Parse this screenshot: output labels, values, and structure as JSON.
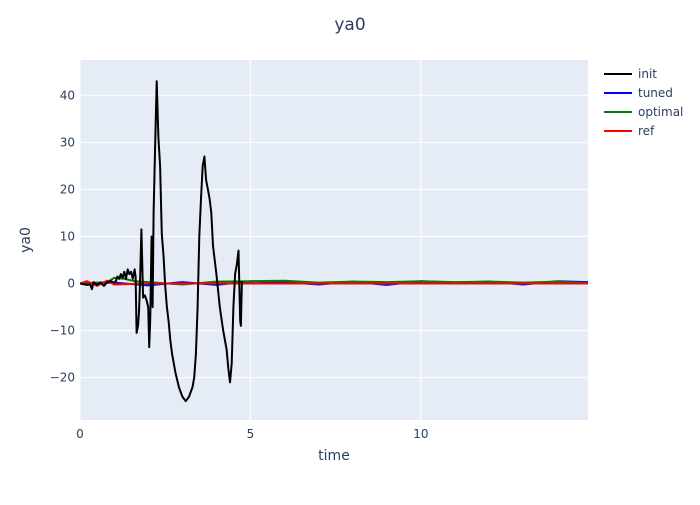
{
  "chart_data": {
    "type": "line",
    "title": "ya0",
    "xlabel": "time",
    "ylabel": "ya0",
    "xlim": [
      0,
      14.9
    ],
    "ylim": [
      -29,
      47.5
    ],
    "x_ticks": [
      0,
      5,
      10
    ],
    "y_ticks": [
      -20,
      -10,
      0,
      10,
      20,
      30,
      40
    ],
    "x_tick_labels": [
      "0",
      "5",
      "10"
    ],
    "y_tick_labels": [
      "−20",
      "−10",
      "0",
      "10",
      "20",
      "30",
      "40"
    ],
    "grid": true,
    "legend_position": "top-right",
    "colors": {
      "plot_bg": "#e5ecf6",
      "grid": "#ffffff",
      "text": "#2a3f5f"
    },
    "series": [
      {
        "name": "init",
        "color": "#000000",
        "x": [
          0,
          0.2,
          0.3,
          0.35,
          0.4,
          0.5,
          0.6,
          0.7,
          0.8,
          0.9,
          1.0,
          1.05,
          1.1,
          1.15,
          1.2,
          1.25,
          1.3,
          1.35,
          1.4,
          1.45,
          1.5,
          1.55,
          1.6,
          1.63,
          1.66,
          1.7,
          1.73,
          1.76,
          1.8,
          1.85,
          1.9,
          1.95,
          2.0,
          2.03,
          2.06,
          2.1,
          2.13,
          2.16,
          2.2,
          2.25,
          2.3,
          2.35,
          2.4,
          2.45,
          2.5,
          2.55,
          2.6,
          2.65,
          2.7,
          2.8,
          2.9,
          3.0,
          3.1,
          3.2,
          3.3,
          3.35,
          3.4,
          3.45,
          3.5,
          3.55,
          3.6,
          3.65,
          3.7,
          3.75,
          3.8,
          3.85,
          3.9,
          4.0,
          4.1,
          4.2,
          4.3,
          4.35,
          4.4,
          4.45,
          4.5,
          4.55,
          4.6,
          4.65,
          4.7,
          4.72,
          4.75
        ],
        "y": [
          0,
          -0.3,
          -0.2,
          -1.2,
          0.3,
          -0.3,
          0.2,
          -0.5,
          0.3,
          0.5,
          0.2,
          0.5,
          1.5,
          1.0,
          2.0,
          1.2,
          2.5,
          1.0,
          3.0,
          2.0,
          2.5,
          1.0,
          3.0,
          1.5,
          -10.5,
          -9.0,
          -6.0,
          0.0,
          11.5,
          -3.0,
          -2.5,
          -3.5,
          -5.0,
          -13.5,
          -8.0,
          10.0,
          -5.0,
          15.0,
          28.0,
          43.0,
          31.0,
          25.0,
          10.5,
          6.0,
          -0.5,
          -5.0,
          -8.0,
          -12.0,
          -15.0,
          -19.0,
          -22.0,
          -24.0,
          -25.0,
          -24.0,
          -22.0,
          -20.0,
          -15.0,
          -5.0,
          10.0,
          18.0,
          25.0,
          27.0,
          22.0,
          20.0,
          18.0,
          15.0,
          8.0,
          2.0,
          -5.0,
          -10.0,
          -14.0,
          -18.0,
          -21.0,
          -17.0,
          -5.0,
          2.0,
          4.0,
          7.0,
          -8.0,
          -9.0,
          0.5
        ]
      },
      {
        "name": "tuned",
        "color": "#0000ff",
        "x": [
          0,
          1,
          2,
          3,
          4,
          5,
          6,
          7,
          8,
          9,
          10,
          11,
          12,
          13,
          14,
          14.9
        ],
        "y": [
          0,
          0.2,
          -0.4,
          0.3,
          -0.3,
          0.5,
          0.3,
          -0.2,
          0.4,
          -0.3,
          0.5,
          0.2,
          0.4,
          -0.2,
          0.5,
          0.3
        ]
      },
      {
        "name": "optimal",
        "color": "#008000",
        "x": [
          0,
          0.8,
          1.0,
          1.3,
          1.6,
          2,
          3,
          4,
          5,
          6,
          7,
          8,
          9,
          10,
          11,
          12,
          13,
          14,
          14.9
        ],
        "y": [
          0,
          0.3,
          1.2,
          1.0,
          0.5,
          0.3,
          -0.2,
          0.4,
          0.5,
          0.6,
          0.2,
          0.4,
          0.3,
          0.5,
          0.3,
          0.4,
          0.2,
          0.4,
          0.1
        ]
      },
      {
        "name": "ref",
        "color": "#ff0000",
        "x": [
          0,
          0.2,
          0.5,
          0.8,
          1.0,
          2,
          3,
          4,
          5,
          6,
          7,
          8,
          9,
          10,
          11,
          12,
          13,
          14,
          14.9
        ],
        "y": [
          0,
          0.5,
          -0.5,
          0.6,
          -0.2,
          0.0,
          0.0,
          0.0,
          0.0,
          0.0,
          0.0,
          0.0,
          0.0,
          0.0,
          0.0,
          0.0,
          0.0,
          0.0,
          0.0
        ]
      }
    ]
  }
}
